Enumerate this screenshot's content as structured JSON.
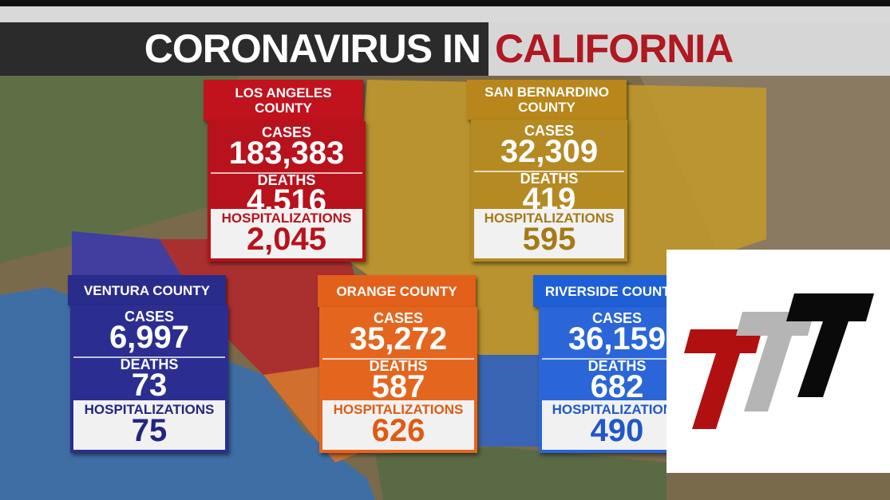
{
  "header": {
    "title_part1": "CORONAVIRUS IN",
    "title_part2": "CALIFORNIA"
  },
  "counties": [
    {
      "name_lines": [
        "LOS ANGELES",
        "COUNTY"
      ],
      "cases_label": "CASES",
      "cases": "183,383",
      "deaths_label": "DEATHS",
      "deaths": "4,516",
      "hospitalizations_label": "HOSPITALIZATIONS",
      "hospitalizations": "2,045"
    },
    {
      "name_lines": [
        "SAN BERNARDINO",
        "COUNTY"
      ],
      "cases_label": "CASES",
      "cases": "32,309",
      "deaths_label": "DEATHS",
      "deaths": "419",
      "hospitalizations_label": "HOSPITALIZATIONS",
      "hospitalizations": "595"
    },
    {
      "name_lines": [
        "VENTURA COUNTY"
      ],
      "cases_label": "CASES",
      "cases": "6,997",
      "deaths_label": "DEATHS",
      "deaths": "73",
      "hospitalizations_label": "HOSPITALIZATIONS",
      "hospitalizations": "75"
    },
    {
      "name_lines": [
        "ORANGE COUNTY"
      ],
      "cases_label": "CASES",
      "cases": "35,272",
      "deaths_label": "DEATHS",
      "deaths": "587",
      "hospitalizations_label": "HOSPITALIZATIONS",
      "hospitalizations": "626"
    },
    {
      "name_lines": [
        "RIVERSIDE COUNTY"
      ],
      "cases_label": "CASES",
      "cases": "36,159",
      "deaths_label": "DEATHS",
      "deaths": "682",
      "hospitalizations_label": "HOSPITALIZATIONS",
      "hospitalizations": "490"
    }
  ]
}
